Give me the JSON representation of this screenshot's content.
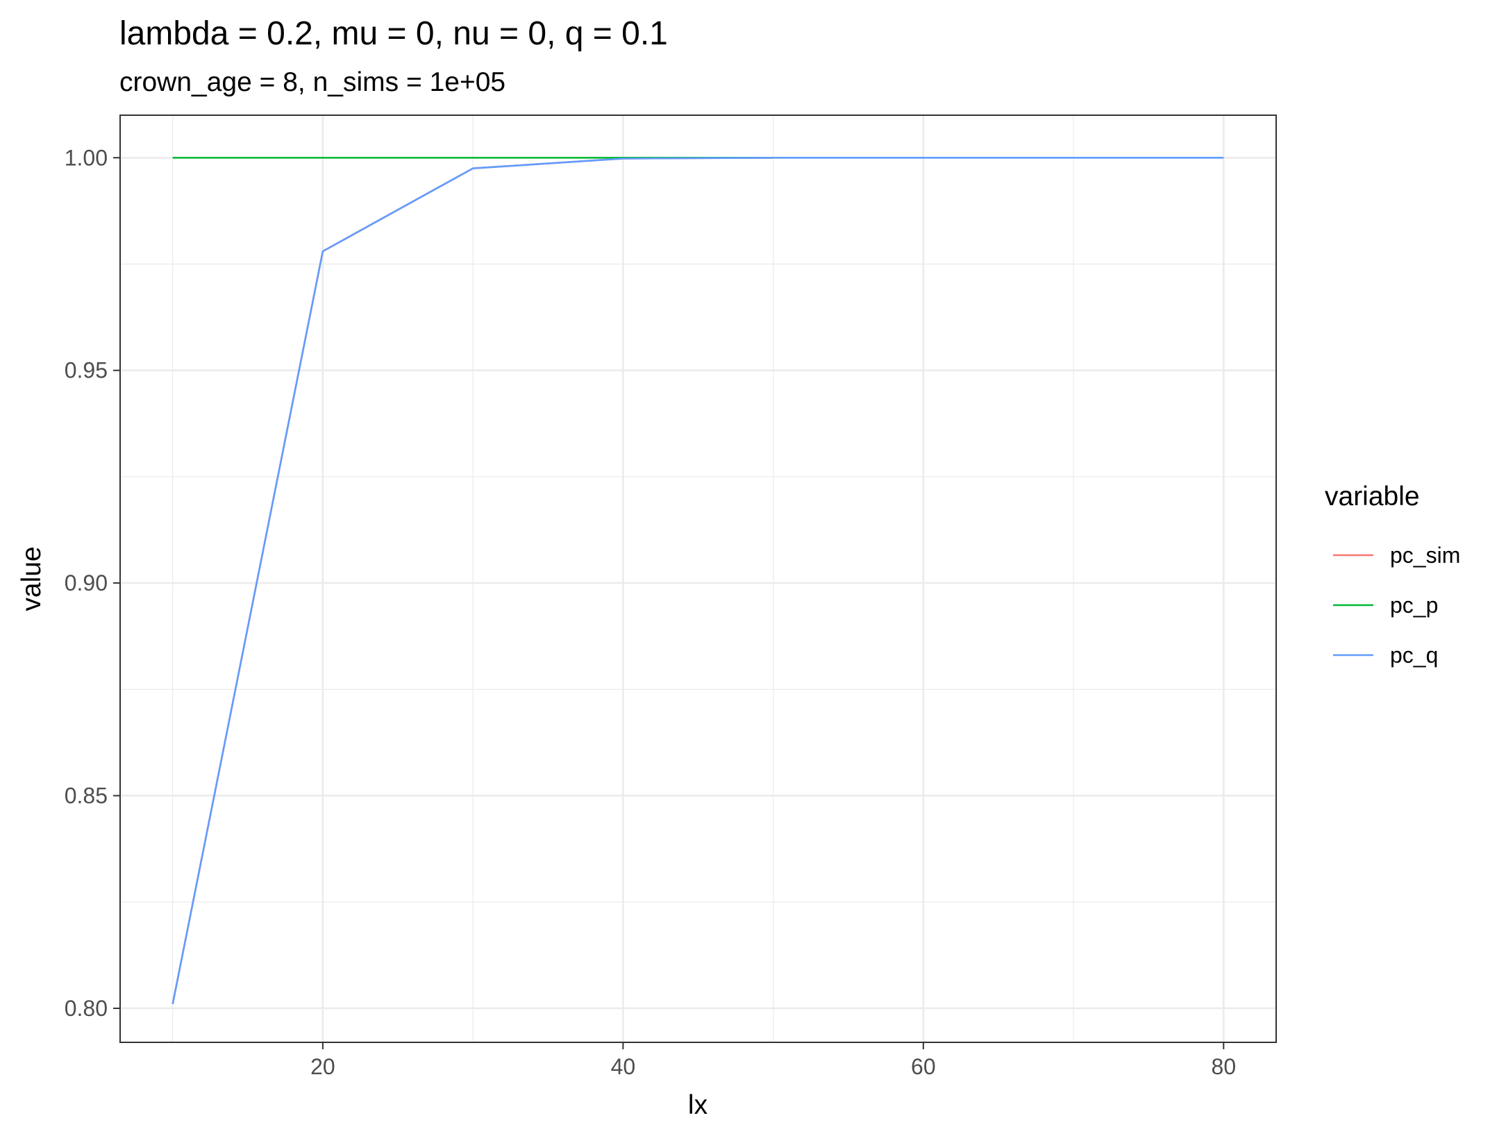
{
  "chart_data": {
    "type": "line",
    "title": "lambda = 0.2, mu = 0, nu = 0, q = 0.1",
    "subtitle": "crown_age = 8, n_sims = 1e+05",
    "xlabel": "lx",
    "ylabel": "value",
    "xlim": [
      6.5,
      83.5
    ],
    "ylim": [
      0.792,
      1.01
    ],
    "x_ticks": [
      20,
      40,
      60,
      80
    ],
    "x_tick_labels": [
      "20",
      "40",
      "60",
      "80"
    ],
    "y_ticks": [
      0.8,
      0.85,
      0.9,
      0.95,
      1.0
    ],
    "y_tick_labels": [
      "0.80",
      "0.85",
      "0.90",
      "0.95",
      "1.00"
    ],
    "grid": true,
    "legend": {
      "title": "variable",
      "position": "right"
    },
    "series": [
      {
        "name": "pc_sim",
        "color": "#F8766D",
        "x": [
          10,
          20,
          30,
          40,
          50
        ],
        "values": [
          0.801,
          0.978,
          0.9975,
          0.9998,
          1.0
        ]
      },
      {
        "name": "pc_p",
        "color": "#00BA38",
        "x": [
          10,
          20,
          30,
          40,
          50
        ],
        "values": [
          1.0,
          1.0,
          1.0,
          1.0,
          1.0
        ]
      },
      {
        "name": "pc_q",
        "color": "#619CFF",
        "x": [
          10,
          20,
          30,
          40,
          50,
          60,
          70,
          80
        ],
        "values": [
          0.801,
          0.978,
          0.9975,
          0.9998,
          1.0,
          1.0,
          1.0,
          1.0
        ]
      }
    ]
  }
}
